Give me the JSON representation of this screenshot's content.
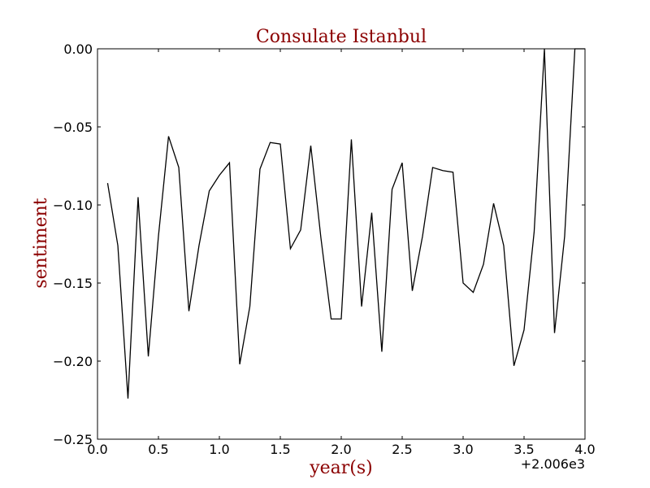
{
  "chart_data": {
    "type": "line",
    "title": "Consulate Istanbul",
    "xlabel": "year(s)",
    "ylabel": "sentiment",
    "x_offset_label": "+2.006e3",
    "xlim": [
      0.0,
      4.0
    ],
    "ylim": [
      -0.25,
      0.0
    ],
    "x_ticks": [
      0.0,
      0.5,
      1.0,
      1.5,
      2.0,
      2.5,
      3.0,
      3.5,
      4.0
    ],
    "x_tick_labels": [
      "0.0",
      "0.5",
      "1.0",
      "1.5",
      "2.0",
      "2.5",
      "3.0",
      "3.5",
      "4.0"
    ],
    "y_ticks": [
      0.0,
      -0.05,
      -0.1,
      -0.15,
      -0.2,
      -0.25
    ],
    "y_tick_labels": [
      "0.00",
      "−0.05",
      "−0.10",
      "−0.15",
      "−0.20",
      "−0.25"
    ],
    "grid": false,
    "line_color": "#000000",
    "title_color": "#8b0000",
    "series": [
      {
        "x": [
          0.083,
          0.167,
          0.25,
          0.333,
          0.417,
          0.5,
          0.583,
          0.667,
          0.75,
          0.833,
          0.917,
          1.0,
          1.083,
          1.167,
          1.25,
          1.333,
          1.417,
          1.5,
          1.583,
          1.667,
          1.75,
          1.833,
          1.917,
          2.0,
          2.083,
          2.167,
          2.25,
          2.333,
          2.417,
          2.5,
          2.583,
          2.667,
          2.75,
          2.833,
          2.917,
          3.0,
          3.083,
          3.167,
          3.25,
          3.333,
          3.417,
          3.5,
          3.583,
          3.667,
          3.75,
          3.833,
          3.917,
          4.0
        ],
        "y": [
          -0.086,
          -0.126,
          -0.224,
          -0.095,
          -0.197,
          -0.12,
          -0.056,
          -0.076,
          -0.168,
          -0.126,
          -0.091,
          -0.081,
          -0.073,
          -0.202,
          -0.165,
          -0.077,
          -0.06,
          -0.061,
          -0.128,
          -0.116,
          -0.062,
          -0.121,
          -0.173,
          -0.173,
          -0.058,
          -0.165,
          -0.105,
          -0.194,
          -0.09,
          -0.073,
          -0.155,
          -0.12,
          -0.076,
          -0.078,
          -0.079,
          -0.15,
          -0.156,
          -0.138,
          -0.099,
          -0.126,
          -0.203,
          -0.18,
          -0.117,
          0.0,
          -0.182,
          -0.12,
          0.0,
          0.0
        ]
      }
    ]
  }
}
